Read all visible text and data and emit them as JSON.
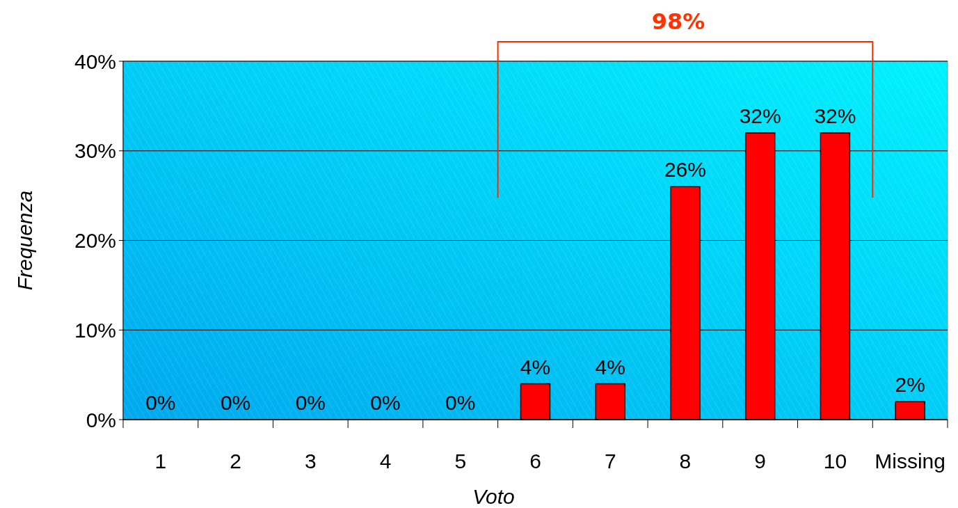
{
  "chart_data": {
    "type": "bar",
    "xlabel": "Voto",
    "ylabel": "Frequenza",
    "categories": [
      "1",
      "2",
      "3",
      "4",
      "5",
      "6",
      "7",
      "8",
      "9",
      "10",
      "Missing"
    ],
    "values": [
      0,
      0,
      0,
      0,
      0,
      4,
      4,
      26,
      32,
      32,
      2
    ],
    "color": "#ff0000",
    "ylim": [
      0,
      40
    ],
    "yticks": [
      {
        "value": 0,
        "label": "0%"
      },
      {
        "value": 10,
        "label": "10%"
      },
      {
        "value": 20,
        "label": "20%"
      },
      {
        "value": 30,
        "label": "30%"
      },
      {
        "value": 40,
        "label": "40%"
      }
    ],
    "grid": "y",
    "value_labels": [
      "0%",
      "0%",
      "0%",
      "0%",
      "0%",
      "4%",
      "4%",
      "26%",
      "32%",
      "32%",
      "2%"
    ],
    "annotations": [
      "98%"
    ]
  }
}
